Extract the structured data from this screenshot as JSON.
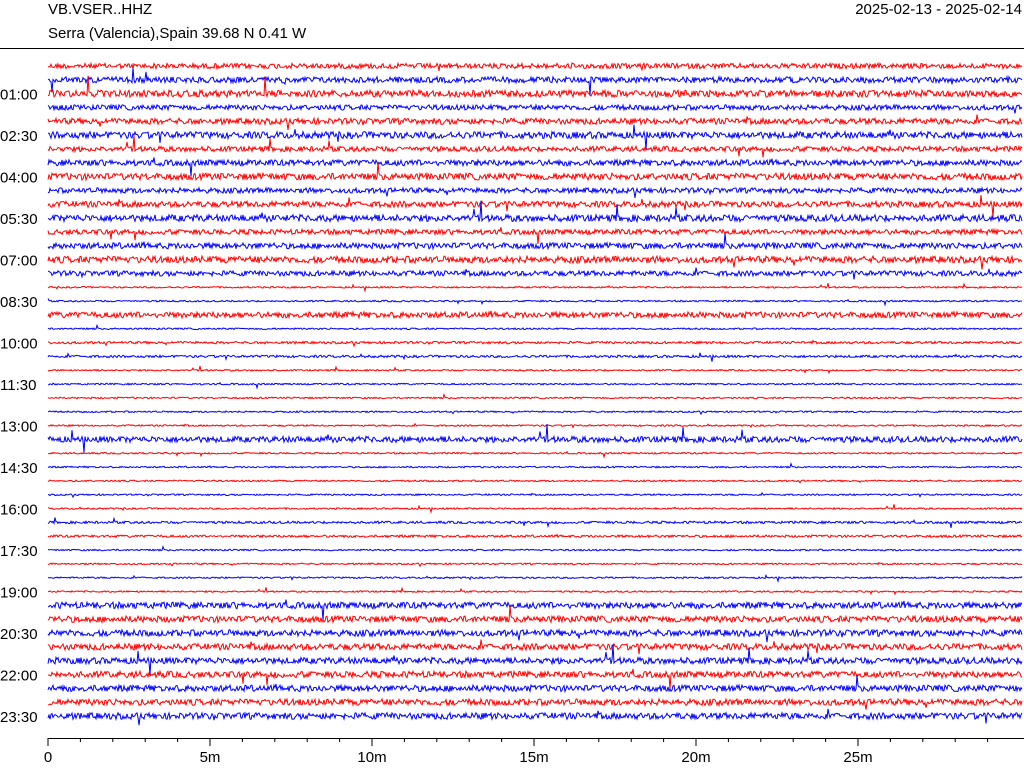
{
  "chart_data": {
    "type": "helicorder",
    "title": "VB.VSER..HHZ",
    "subtitle": "Serra (Valencia),Spain  39.68 N 0.41 W",
    "date_range": "2025-02-13 - 2025-02-14",
    "categories": [
      null,
      null,
      "01:00",
      null,
      null,
      "02:30",
      null,
      null,
      "04:00",
      null,
      null,
      "05:30",
      null,
      null,
      "07:00",
      null,
      null,
      "08:30",
      null,
      null,
      "10:00",
      null,
      null,
      "11:30",
      null,
      null,
      "13:00",
      null,
      null,
      "14:30",
      null,
      null,
      "16:00",
      null,
      null,
      "17:30",
      null,
      null,
      "19:00",
      null,
      null,
      "20:30",
      null,
      null,
      "22:00",
      null,
      null,
      "23:30"
    ],
    "trace_colors": [
      "#ff0000",
      "#0000ff"
    ],
    "xlim": [
      0,
      30
    ],
    "xticks": [
      {
        "value": 0,
        "label": "0"
      },
      {
        "value": 5,
        "label": "5m"
      },
      {
        "value": 10,
        "label": "10m"
      },
      {
        "value": 15,
        "label": "15m"
      },
      {
        "value": 20,
        "label": "20m"
      },
      {
        "value": 25,
        "label": "25m"
      }
    ],
    "minor_tick_step": 1
  }
}
